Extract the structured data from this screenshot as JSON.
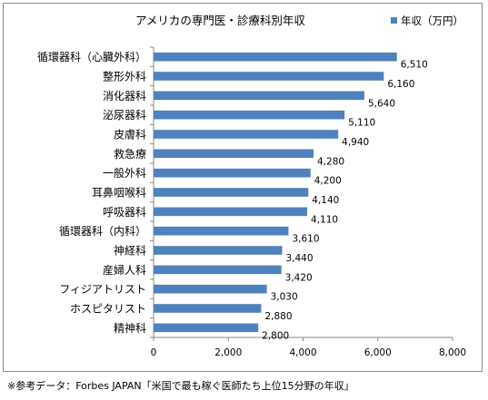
{
  "chart_data": {
    "type": "bar",
    "orientation": "horizontal",
    "title": "アメリカの専門医・診療科別年収",
    "xlabel": "",
    "ylabel": "",
    "xlim": [
      0,
      8000
    ],
    "xticks": [
      0,
      2000,
      4000,
      6000,
      8000
    ],
    "xtick_labels": [
      "0",
      "2,000",
      "4,000",
      "6,000",
      "8,000"
    ],
    "grid": false,
    "legend_position": "top-right",
    "categories": [
      "循環器科（心臓外科）",
      "整形外科",
      "消化器科",
      "泌尿器科",
      "皮膚科",
      "救急療",
      "一般外科",
      "耳鼻咽喉科",
      "呼吸器科",
      "循環器科（内科）",
      "神経科",
      "産婦人科",
      "フィジアトリスト",
      "ホスピタリスト",
      "精神科"
    ],
    "series": [
      {
        "name": "年収（万円）",
        "color": "#4f81bd",
        "values": [
          6510,
          6160,
          5640,
          5110,
          4940,
          4280,
          4200,
          4140,
          4110,
          3610,
          3440,
          3420,
          3030,
          2880,
          2800
        ],
        "value_labels": [
          "6,510",
          "6,160",
          "5,640",
          "5,110",
          "4,940",
          "4,280",
          "4,200",
          "4,140",
          "4,110",
          "3,610",
          "3,440",
          "3,420",
          "3,030",
          "2,880",
          "2,800"
        ]
      }
    ]
  },
  "footnote": "※参考データ：Forbes JAPAN「米国で最も稼ぐ医師たち上位15分野の年収」"
}
